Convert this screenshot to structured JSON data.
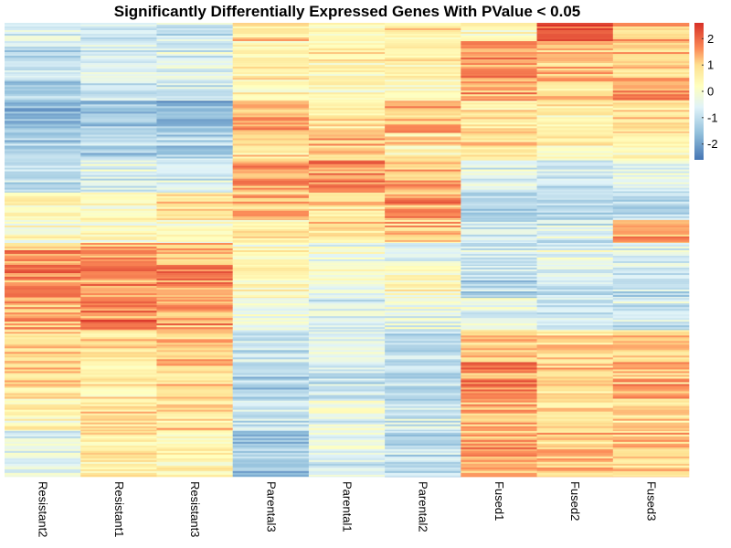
{
  "chart_data": {
    "type": "heatmap",
    "title": "Significantly Differentially Expressed Genes With PValue < 0.05",
    "columns": [
      "Resistant2",
      "Resistant1",
      "Resistant3",
      "Parental3",
      "Parental1",
      "Parental2",
      "Fused1",
      "Fused2",
      "Fused3"
    ],
    "color_scale": {
      "ticks": [
        -2,
        -1,
        0,
        1,
        2
      ],
      "tick_labels": [
        "-2",
        "-1",
        "0",
        "1",
        "2"
      ],
      "range": [
        -2.6,
        2.6
      ],
      "stops": [
        {
          "value": -2.6,
          "color": "#4575b4"
        },
        {
          "value": -1.6,
          "color": "#91bfdb"
        },
        {
          "value": -0.6,
          "color": "#e0f3f8"
        },
        {
          "value": 0.2,
          "color": "#ffffbf"
        },
        {
          "value": 1.0,
          "color": "#fee090"
        },
        {
          "value": 1.6,
          "color": "#fc8d59"
        },
        {
          "value": 2.6,
          "color": "#d73027"
        }
      ]
    },
    "row_bands": [
      {
        "fraction": 0.04,
        "values": [
          -0.6,
          -0.9,
          -0.8,
          0.8,
          0.3,
          0.6,
          0.2,
          2.0,
          1.2
        ]
      },
      {
        "fraction": 0.08,
        "values": [
          -1.0,
          -0.5,
          -0.6,
          0.6,
          0.4,
          0.4,
          1.6,
          1.2,
          0.9
        ]
      },
      {
        "fraction": 0.05,
        "values": [
          -1.3,
          -0.9,
          -0.9,
          0.4,
          0.2,
          0.2,
          1.4,
          1.0,
          1.6
        ]
      },
      {
        "fraction": 0.07,
        "values": [
          -1.7,
          -1.4,
          -1.6,
          1.2,
          0.7,
          1.2,
          0.7,
          0.5,
          0.8
        ]
      },
      {
        "fraction": 0.06,
        "values": [
          -1.3,
          -1.2,
          -1.1,
          0.9,
          1.1,
          0.7,
          0.9,
          0.4,
          0.5
        ]
      },
      {
        "fraction": 0.07,
        "values": [
          -1.2,
          -0.6,
          -0.7,
          1.4,
          1.6,
          1.2,
          -0.6,
          -0.9,
          -0.6
        ]
      },
      {
        "fraction": 0.06,
        "values": [
          0.5,
          0.3,
          0.8,
          1.3,
          0.8,
          1.5,
          -1.3,
          -1.1,
          -1.0
        ]
      },
      {
        "fraction": 0.05,
        "values": [
          0.2,
          0.2,
          0.3,
          0.6,
          0.8,
          1.1,
          -0.9,
          -0.6,
          1.5
        ]
      },
      {
        "fraction": 0.05,
        "values": [
          1.5,
          1.3,
          1.4,
          0.2,
          -0.3,
          -0.5,
          -0.9,
          -0.4,
          -0.5
        ]
      },
      {
        "fraction": 0.07,
        "values": [
          1.8,
          1.6,
          1.7,
          0.3,
          -0.1,
          0.3,
          -1.1,
          -0.8,
          -0.9
        ]
      },
      {
        "fraction": 0.07,
        "values": [
          1.3,
          1.8,
          1.4,
          -0.3,
          -0.6,
          -0.4,
          -0.5,
          -0.9,
          -0.7
        ]
      },
      {
        "fraction": 0.07,
        "values": [
          1.0,
          0.9,
          1.1,
          -0.8,
          -0.5,
          -1.0,
          1.1,
          0.9,
          1.0
        ]
      },
      {
        "fraction": 0.08,
        "values": [
          0.8,
          0.6,
          0.9,
          -1.2,
          -0.8,
          -1.0,
          1.6,
          1.0,
          1.2
        ]
      },
      {
        "fraction": 0.07,
        "values": [
          0.4,
          0.7,
          0.8,
          -0.9,
          -0.4,
          -0.8,
          1.2,
          0.8,
          1.0
        ]
      },
      {
        "fraction": 0.1,
        "values": [
          -0.5,
          0.5,
          0.4,
          -1.4,
          -0.6,
          -1.1,
          1.5,
          1.0,
          1.0
        ]
      }
    ]
  }
}
